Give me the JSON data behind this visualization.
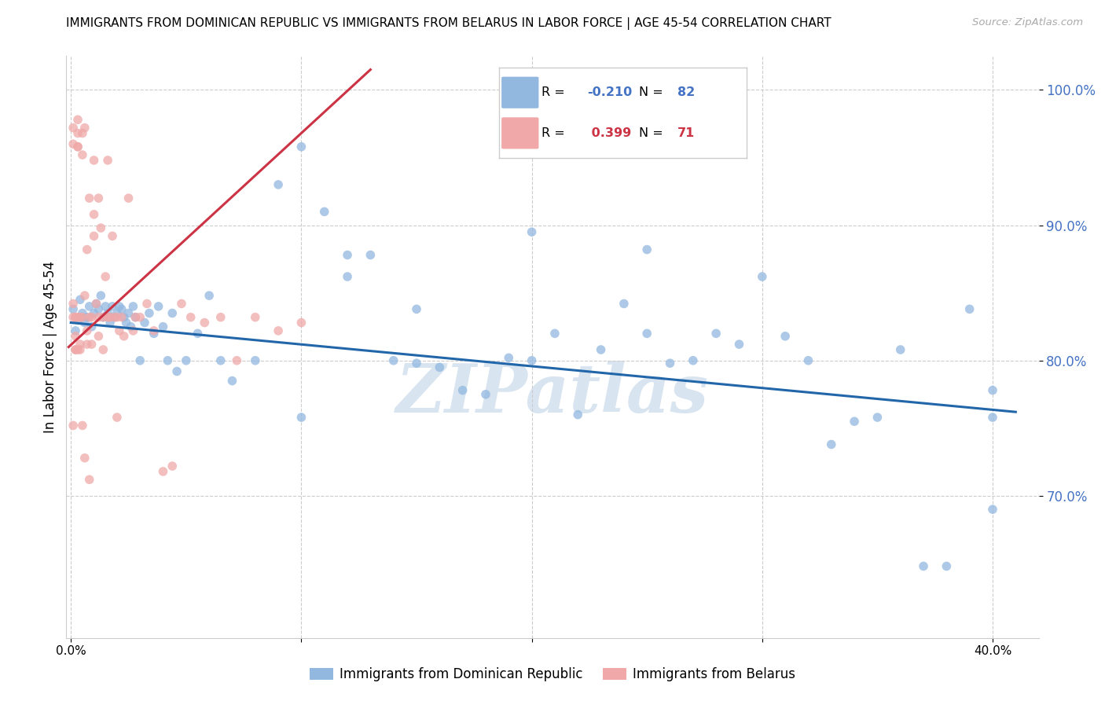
{
  "title": "IMMIGRANTS FROM DOMINICAN REPUBLIC VS IMMIGRANTS FROM BELARUS IN LABOR FORCE | AGE 45-54 CORRELATION CHART",
  "source": "Source: ZipAtlas.com",
  "ylabel": "In Labor Force | Age 45-54",
  "xlim": [
    -0.002,
    0.42
  ],
  "ylim": [
    0.595,
    1.025
  ],
  "yticks": [
    0.7,
    0.8,
    0.9,
    1.0
  ],
  "ytick_labels": [
    "70.0%",
    "80.0%",
    "90.0%",
    "100.0%"
  ],
  "xticks": [
    0.0,
    0.1,
    0.2,
    0.3,
    0.4
  ],
  "xtick_labels": [
    "0.0%",
    "",
    "",
    "",
    "40.0%"
  ],
  "r_blue": -0.21,
  "n_blue": 82,
  "r_pink": 0.399,
  "n_pink": 71,
  "blue_color": "#92b8e0",
  "pink_color": "#f0a8a8",
  "line_blue": "#2266aa",
  "line_pink": "#cc3344",
  "watermark": "ZIPatlas",
  "watermark_color": "#d8e4f0",
  "blue_scatter_x": [
    0.001,
    0.002,
    0.003,
    0.004,
    0.005,
    0.006,
    0.007,
    0.008,
    0.009,
    0.01,
    0.011,
    0.012,
    0.013,
    0.014,
    0.015,
    0.016,
    0.017,
    0.018,
    0.019,
    0.02,
    0.021,
    0.022,
    0.023,
    0.024,
    0.025,
    0.026,
    0.027,
    0.028,
    0.03,
    0.032,
    0.034,
    0.036,
    0.038,
    0.04,
    0.042,
    0.044,
    0.046,
    0.05,
    0.055,
    0.06,
    0.065,
    0.07,
    0.08,
    0.09,
    0.1,
    0.11,
    0.12,
    0.13,
    0.14,
    0.15,
    0.16,
    0.17,
    0.18,
    0.19,
    0.2,
    0.21,
    0.22,
    0.23,
    0.24,
    0.25,
    0.26,
    0.27,
    0.28,
    0.29,
    0.3,
    0.31,
    0.32,
    0.33,
    0.34,
    0.35,
    0.36,
    0.37,
    0.38,
    0.39,
    0.4,
    0.4,
    0.4,
    0.2,
    0.25,
    0.15,
    0.12,
    0.1
  ],
  "blue_scatter_y": [
    0.838,
    0.822,
    0.83,
    0.845,
    0.835,
    0.828,
    0.832,
    0.84,
    0.825,
    0.835,
    0.842,
    0.838,
    0.848,
    0.832,
    0.84,
    0.835,
    0.828,
    0.84,
    0.832,
    0.835,
    0.84,
    0.838,
    0.832,
    0.828,
    0.835,
    0.825,
    0.84,
    0.832,
    0.8,
    0.828,
    0.835,
    0.82,
    0.84,
    0.825,
    0.8,
    0.835,
    0.792,
    0.8,
    0.82,
    0.848,
    0.8,
    0.785,
    0.8,
    0.93,
    0.958,
    0.91,
    0.862,
    0.878,
    0.8,
    0.838,
    0.795,
    0.778,
    0.775,
    0.802,
    0.8,
    0.82,
    0.76,
    0.808,
    0.842,
    0.82,
    0.798,
    0.8,
    0.82,
    0.812,
    0.862,
    0.818,
    0.8,
    0.738,
    0.755,
    0.758,
    0.808,
    0.648,
    0.648,
    0.838,
    0.778,
    0.69,
    0.758,
    0.895,
    0.882,
    0.798,
    0.878,
    0.758
  ],
  "pink_scatter_x": [
    0.001,
    0.001,
    0.001,
    0.002,
    0.002,
    0.002,
    0.003,
    0.003,
    0.003,
    0.004,
    0.004,
    0.005,
    0.005,
    0.006,
    0.006,
    0.007,
    0.007,
    0.008,
    0.009,
    0.009,
    0.01,
    0.01,
    0.011,
    0.012,
    0.013,
    0.014,
    0.015,
    0.016,
    0.017,
    0.018,
    0.019,
    0.02,
    0.021,
    0.022,
    0.023,
    0.025,
    0.027,
    0.03,
    0.033,
    0.036,
    0.04,
    0.044,
    0.048,
    0.052,
    0.058,
    0.065,
    0.072,
    0.08,
    0.09,
    0.1,
    0.012,
    0.014,
    0.016,
    0.005,
    0.007,
    0.008,
    0.01,
    0.003,
    0.004,
    0.006,
    0.002,
    0.002,
    0.003,
    0.001,
    0.001,
    0.003,
    0.005,
    0.008,
    0.012,
    0.02,
    0.028
  ],
  "pink_scatter_y": [
    0.972,
    0.96,
    0.842,
    0.832,
    0.818,
    0.808,
    0.978,
    0.968,
    0.958,
    0.832,
    0.812,
    0.968,
    0.952,
    0.972,
    0.848,
    0.882,
    0.822,
    0.92,
    0.832,
    0.812,
    0.948,
    0.908,
    0.842,
    0.92,
    0.898,
    0.832,
    0.862,
    0.948,
    0.832,
    0.892,
    0.832,
    0.832,
    0.822,
    0.832,
    0.818,
    0.92,
    0.822,
    0.832,
    0.842,
    0.822,
    0.718,
    0.722,
    0.842,
    0.832,
    0.828,
    0.832,
    0.8,
    0.832,
    0.822,
    0.828,
    0.832,
    0.808,
    0.832,
    0.832,
    0.812,
    0.832,
    0.892,
    0.832,
    0.808,
    0.728,
    0.832,
    0.808,
    0.958,
    0.832,
    0.752,
    0.808,
    0.752,
    0.712,
    0.818,
    0.758,
    0.832
  ],
  "blue_trend_x": [
    0.0,
    0.41
  ],
  "blue_trend_y": [
    0.828,
    0.762
  ],
  "pink_trend_x": [
    -0.001,
    0.13
  ],
  "pink_trend_y": [
    0.81,
    1.015
  ]
}
